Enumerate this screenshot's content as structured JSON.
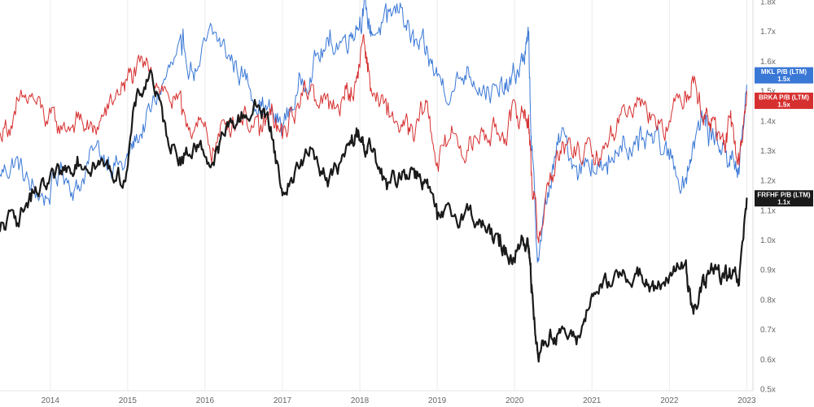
{
  "chart_data": {
    "type": "line",
    "title": "",
    "xlabel": "",
    "ylabel": "",
    "x_ticks": [
      "2014",
      "2015",
      "2016",
      "2017",
      "2018",
      "2019",
      "2020",
      "2021",
      "2022",
      "2023"
    ],
    "y_ticks": [
      "0.5x",
      "0.6x",
      "0.7x",
      "0.8x",
      "0.9x",
      "1.0x",
      "1.1x",
      "1.2x",
      "1.3x",
      "1.4x",
      "1.5x",
      "1.6x",
      "1.7x",
      "1.8x"
    ],
    "xlim": [
      2013.35,
      2023.08
    ],
    "ylim": [
      0.5,
      1.8
    ],
    "grid": "vertical",
    "legend": "right-edge value tags",
    "series": [
      {
        "name": "MKL P/B (LTM)",
        "last_value_label": "1.5x",
        "color": "#3a78d6",
        "line_width": 1,
        "x": [
          2013.35,
          2013.55,
          2013.75,
          2013.95,
          2014.15,
          2014.35,
          2014.55,
          2014.75,
          2014.95,
          2015.1,
          2015.3,
          2015.5,
          2015.7,
          2015.9,
          2016.1,
          2016.3,
          2016.5,
          2016.7,
          2016.85,
          2017.0,
          2017.2,
          2017.4,
          2017.6,
          2017.8,
          2017.95,
          2018.05,
          2018.15,
          2018.35,
          2018.55,
          2018.7,
          2018.85,
          2019.0,
          2019.2,
          2019.4,
          2019.6,
          2019.8,
          2019.95,
          2020.1,
          2020.18,
          2020.22,
          2020.3,
          2020.45,
          2020.6,
          2020.8,
          2021.0,
          2021.2,
          2021.4,
          2021.6,
          2021.8,
          2022.0,
          2022.2,
          2022.3,
          2022.45,
          2022.55,
          2022.7,
          2022.8,
          2022.9,
          2023.0
        ],
        "values": [
          1.22,
          1.27,
          1.17,
          1.14,
          1.24,
          1.17,
          1.3,
          1.28,
          1.24,
          1.33,
          1.43,
          1.55,
          1.62,
          1.57,
          1.69,
          1.62,
          1.55,
          1.47,
          1.42,
          1.38,
          1.5,
          1.6,
          1.65,
          1.68,
          1.72,
          1.78,
          1.7,
          1.73,
          1.78,
          1.65,
          1.62,
          1.55,
          1.5,
          1.58,
          1.52,
          1.48,
          1.52,
          1.6,
          1.67,
          1.3,
          0.94,
          1.18,
          1.35,
          1.25,
          1.27,
          1.22,
          1.35,
          1.3,
          1.33,
          1.27,
          1.2,
          1.32,
          1.41,
          1.35,
          1.32,
          1.27,
          1.22,
          1.52
        ]
      },
      {
        "name": "BRKA P/B (LTM)",
        "last_value_label": "1.5x",
        "color": "#d62f2f",
        "line_width": 1,
        "x": [
          2013.35,
          2013.55,
          2013.75,
          2013.95,
          2014.15,
          2014.35,
          2014.55,
          2014.75,
          2014.95,
          2015.1,
          2015.3,
          2015.5,
          2015.7,
          2015.9,
          2016.1,
          2016.3,
          2016.5,
          2016.7,
          2016.85,
          2017.0,
          2017.2,
          2017.4,
          2017.6,
          2017.8,
          2017.95,
          2018.05,
          2018.15,
          2018.35,
          2018.55,
          2018.7,
          2018.85,
          2019.0,
          2019.2,
          2019.4,
          2019.6,
          2019.8,
          2019.95,
          2020.1,
          2020.18,
          2020.22,
          2020.3,
          2020.45,
          2020.6,
          2020.8,
          2021.0,
          2021.2,
          2021.4,
          2021.6,
          2021.8,
          2022.0,
          2022.2,
          2022.3,
          2022.45,
          2022.55,
          2022.7,
          2022.8,
          2022.9,
          2023.0
        ],
        "values": [
          1.36,
          1.42,
          1.48,
          1.4,
          1.37,
          1.41,
          1.36,
          1.44,
          1.53,
          1.55,
          1.58,
          1.5,
          1.42,
          1.38,
          1.31,
          1.4,
          1.43,
          1.35,
          1.42,
          1.34,
          1.46,
          1.52,
          1.44,
          1.47,
          1.53,
          1.69,
          1.5,
          1.42,
          1.38,
          1.33,
          1.47,
          1.26,
          1.36,
          1.3,
          1.37,
          1.35,
          1.4,
          1.43,
          1.42,
          1.22,
          1.01,
          1.2,
          1.29,
          1.3,
          1.28,
          1.31,
          1.45,
          1.47,
          1.42,
          1.4,
          1.5,
          1.55,
          1.42,
          1.4,
          1.32,
          1.38,
          1.25,
          1.5
        ]
      },
      {
        "name": "FRFHF P/B (LTM)",
        "last_value_label": "1.1x",
        "color": "#1a1a1a",
        "line_width": 2.2,
        "x": [
          2013.35,
          2013.55,
          2013.75,
          2013.95,
          2014.15,
          2014.35,
          2014.55,
          2014.75,
          2014.95,
          2015.1,
          2015.3,
          2015.5,
          2015.7,
          2015.9,
          2016.1,
          2016.3,
          2016.5,
          2016.7,
          2016.85,
          2017.0,
          2017.2,
          2017.4,
          2017.6,
          2017.8,
          2017.95,
          2018.05,
          2018.15,
          2018.35,
          2018.55,
          2018.7,
          2018.85,
          2019.0,
          2019.2,
          2019.4,
          2019.6,
          2019.8,
          2019.95,
          2020.1,
          2020.18,
          2020.22,
          2020.3,
          2020.45,
          2020.6,
          2020.8,
          2021.0,
          2021.2,
          2021.4,
          2021.6,
          2021.8,
          2022.0,
          2022.2,
          2022.3,
          2022.45,
          2022.55,
          2022.7,
          2022.8,
          2022.9,
          2023.0
        ],
        "values": [
          1.03,
          1.08,
          1.13,
          1.17,
          1.22,
          1.28,
          1.26,
          1.24,
          1.2,
          1.45,
          1.57,
          1.35,
          1.28,
          1.32,
          1.26,
          1.38,
          1.42,
          1.45,
          1.38,
          1.15,
          1.25,
          1.3,
          1.2,
          1.28,
          1.35,
          1.32,
          1.3,
          1.17,
          1.23,
          1.24,
          1.2,
          1.07,
          1.08,
          1.1,
          1.05,
          0.98,
          0.95,
          1.0,
          0.98,
          0.85,
          0.62,
          0.68,
          0.7,
          0.65,
          0.82,
          0.84,
          0.9,
          0.88,
          0.83,
          0.88,
          0.92,
          0.78,
          0.85,
          0.9,
          0.88,
          0.87,
          0.85,
          1.14
        ]
      }
    ]
  }
}
